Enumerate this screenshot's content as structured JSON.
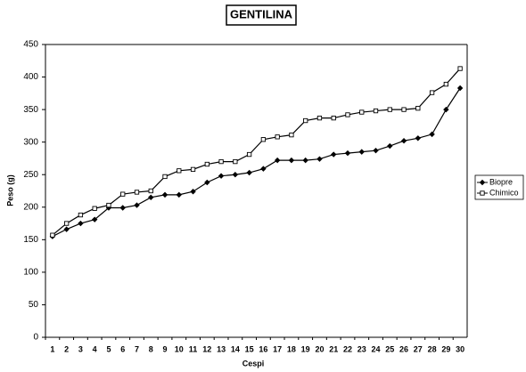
{
  "chart_data": {
    "type": "line",
    "title": "GENTILINA",
    "x_label": "Cespi",
    "y_label": "Peso (g)",
    "categories": [
      "1",
      "2",
      "3",
      "4",
      "5",
      "6",
      "7",
      "8",
      "9",
      "10",
      "11",
      "12",
      "13",
      "14",
      "15",
      "16",
      "17",
      "18",
      "19",
      "20",
      "21",
      "22",
      "23",
      "24",
      "25",
      "26",
      "27",
      "28",
      "29",
      "30"
    ],
    "series": [
      {
        "name": "Biopre",
        "color": "#000000",
        "marker": "diamond",
        "values": [
          155,
          166,
          175,
          181,
          199,
          199,
          203,
          215,
          219,
          219,
          224,
          238,
          248,
          250,
          253,
          259,
          272,
          272,
          272,
          274,
          281,
          283,
          285,
          287,
          294,
          302,
          306,
          312,
          350,
          383
        ]
      },
      {
        "name": "Chimico",
        "color": "#000000",
        "marker": "square",
        "values": [
          157,
          175,
          188,
          198,
          203,
          220,
          223,
          225,
          247,
          256,
          258,
          266,
          270,
          270,
          281,
          304,
          308,
          311,
          333,
          337,
          337,
          342,
          346,
          348,
          350,
          350,
          352,
          376,
          389,
          413
        ]
      }
    ],
    "ylim": [
      0,
      450
    ],
    "yticks": [
      0,
      50,
      100,
      150,
      200,
      250,
      300,
      350,
      400,
      450
    ],
    "grid": false,
    "legend": "right"
  }
}
